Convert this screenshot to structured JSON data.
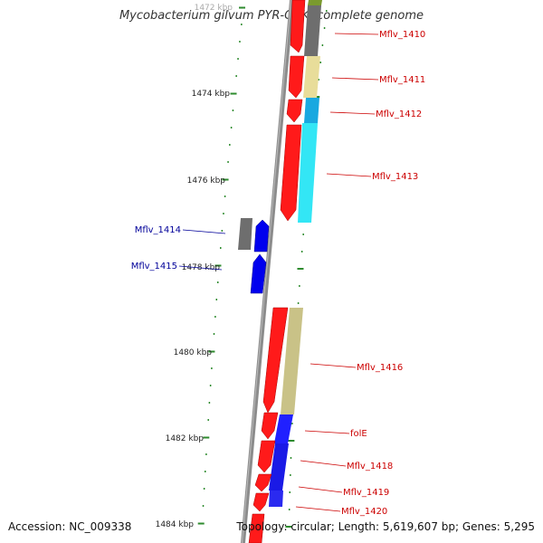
{
  "title": "Mycobacterium gilvum PYR-GCK, complete genome",
  "footer": {
    "accession": "Accession: NC_009338",
    "topology": "Topology: circular; Length: 5,619,607 bp; Genes: 5,295"
  },
  "colors": {
    "backbone": "#8c8c8c",
    "tick": "#2e8b2e",
    "forward_gene": "#ff0000",
    "reverse_gene": "#0000ff",
    "gray_gene": "#6e6e6e",
    "khaki_feature": "#d2cf8a",
    "cyan_feature": "#33d9f0",
    "forward_label": "#cc0000",
    "reverse_label": "#000099"
  },
  "scale_labels": [
    "1472 kbp",
    "1474 kbp",
    "1476 kbp",
    "1478 kbp",
    "1480 kbp",
    "1482 kbp",
    "1484 kbp"
  ],
  "gene_labels": {
    "forward": [
      "Mflv_1410",
      "Mflv_1411",
      "Mflv_1412",
      "Mflv_1413",
      "Mflv_1416",
      "folE",
      "Mflv_1418",
      "Mflv_1419",
      "Mflv_1420"
    ],
    "reverse": [
      "Mflv_1414",
      "Mflv_1415"
    ]
  }
}
